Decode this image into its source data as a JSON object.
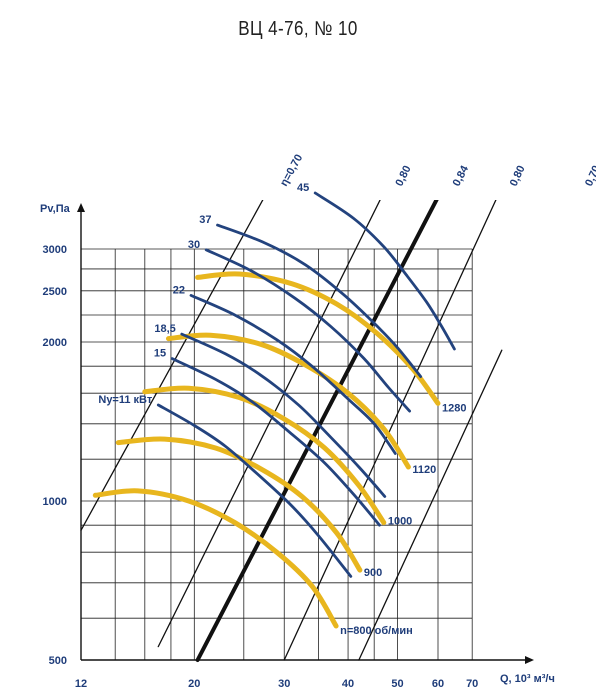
{
  "chart_data": {
    "type": "line",
    "title": "ВЦ 4-76, № 10",
    "xlabel": "Q, 10³ м³/ч",
    "ylabel": "Pv,Па",
    "x_scale": "log",
    "y_scale": "log",
    "xlim": [
      12,
      80
    ],
    "ylim": [
      500,
      4000
    ],
    "x_ticks": [
      12,
      20,
      30,
      40,
      50,
      60,
      70
    ],
    "y_ticks": [
      500,
      1000,
      2000,
      2500,
      3000
    ],
    "grid": true,
    "colors": {
      "speed_curve": "#e8b61e",
      "power_curve": "#23437e",
      "efficiency_line": "#111111"
    },
    "speed_curves": [
      {
        "name": "n=800 об/мин",
        "label": "n=800 об/мин",
        "points": [
          [
            12.8,
            1025
          ],
          [
            15.5,
            1045
          ],
          [
            19.5,
            1000
          ],
          [
            24,
            910
          ],
          [
            29,
            800
          ],
          [
            34,
            690
          ],
          [
            37.9,
            580
          ]
        ]
      },
      {
        "name": "900",
        "label": "900",
        "points": [
          [
            14.2,
            1290
          ],
          [
            17.5,
            1310
          ],
          [
            22,
            1260
          ],
          [
            27,
            1150
          ],
          [
            32.5,
            1020
          ],
          [
            38,
            870
          ],
          [
            42.2,
            740
          ]
        ]
      },
      {
        "name": "1000",
        "label": "1000",
        "points": [
          [
            16,
            1610
          ],
          [
            19.5,
            1635
          ],
          [
            24.5,
            1570
          ],
          [
            30,
            1430
          ],
          [
            36,
            1260
          ],
          [
            42,
            1070
          ],
          [
            47,
            910
          ]
        ]
      },
      {
        "name": "1120",
        "label": "1120",
        "points": [
          [
            17.8,
            2030
          ],
          [
            21.5,
            2060
          ],
          [
            27,
            1980
          ],
          [
            33,
            1810
          ],
          [
            40,
            1600
          ],
          [
            47,
            1370
          ],
          [
            52.5,
            1160
          ]
        ]
      },
      {
        "name": "1280",
        "label": "1280",
        "points": [
          [
            20.3,
            2650
          ],
          [
            24.5,
            2690
          ],
          [
            31,
            2580
          ],
          [
            38,
            2360
          ],
          [
            45.5,
            2080
          ],
          [
            53.5,
            1780
          ],
          [
            60,
            1530
          ]
        ]
      }
    ],
    "power_curves": [
      {
        "name": "Ny=11 кВт",
        "label": "Ny=11 кВт",
        "points": [
          [
            17,
            1520
          ],
          [
            20,
            1390
          ],
          [
            23,
            1270
          ],
          [
            27,
            1110
          ],
          [
            31,
            980
          ],
          [
            35,
            860
          ],
          [
            40.5,
            720
          ]
        ]
      },
      {
        "name": "15",
        "label": "15",
        "points": [
          [
            18.1,
            1860
          ],
          [
            22,
            1700
          ],
          [
            26,
            1540
          ],
          [
            31,
            1340
          ],
          [
            36,
            1180
          ],
          [
            41,
            1030
          ],
          [
            46.1,
            900
          ]
        ]
      },
      {
        "name": "18,5",
        "label": "18,5",
        "points": [
          [
            18.9,
            2070
          ],
          [
            23,
            1900
          ],
          [
            27,
            1730
          ],
          [
            32,
            1520
          ],
          [
            37,
            1320
          ],
          [
            42,
            1160
          ],
          [
            47.2,
            1020
          ]
        ]
      },
      {
        "name": "22",
        "label": "22",
        "points": [
          [
            19.7,
            2450
          ],
          [
            24,
            2250
          ],
          [
            29,
            2020
          ],
          [
            34,
            1800
          ],
          [
            40,
            1560
          ],
          [
            45,
            1400
          ],
          [
            49.5,
            1230
          ]
        ]
      },
      {
        "name": "30",
        "label": "30",
        "points": [
          [
            21.1,
            2990
          ],
          [
            26,
            2720
          ],
          [
            31.5,
            2420
          ],
          [
            37,
            2140
          ],
          [
            43,
            1860
          ],
          [
            48,
            1640
          ],
          [
            52.8,
            1480
          ]
        ]
      },
      {
        "name": "37",
        "label": "37",
        "points": [
          [
            22.2,
            3330
          ],
          [
            27.5,
            3080
          ],
          [
            33,
            2800
          ],
          [
            39,
            2470
          ],
          [
            45,
            2170
          ],
          [
            50,
            1950
          ],
          [
            55.5,
            1720
          ]
        ]
      },
      {
        "name": "45",
        "label": "45",
        "points": [
          [
            34.5,
            3830
          ],
          [
            41,
            3430
          ],
          [
            47,
            3030
          ],
          [
            52,
            2680
          ],
          [
            57,
            2380
          ],
          [
            61,
            2140
          ],
          [
            64.6,
            1940
          ]
        ]
      }
    ],
    "efficiency_lines": [
      {
        "name": "η=0,70",
        "label": "η=0,70",
        "p1": [
          12,
          880
        ],
        "p2": [
          28.4,
          4000
        ],
        "bold": false
      },
      {
        "name": "0,80",
        "label": "0,80",
        "p1": [
          17,
          530
        ],
        "p2": [
          48,
          4000
        ],
        "bold": false
      },
      {
        "name": "0,84",
        "label": "0,84",
        "p1": [
          20.3,
          500
        ],
        "p2": [
          62,
          4000
        ],
        "bold": true
      },
      {
        "name": "0,80",
        "label": "0,80",
        "p1": [
          30,
          500
        ],
        "p2": [
          80,
          3930
        ],
        "bold": false
      },
      {
        "name": "0,70",
        "label": "0,70",
        "p1": [
          42,
          500
        ],
        "p2": [
          80,
          1930
        ],
        "bold": false
      }
    ]
  }
}
